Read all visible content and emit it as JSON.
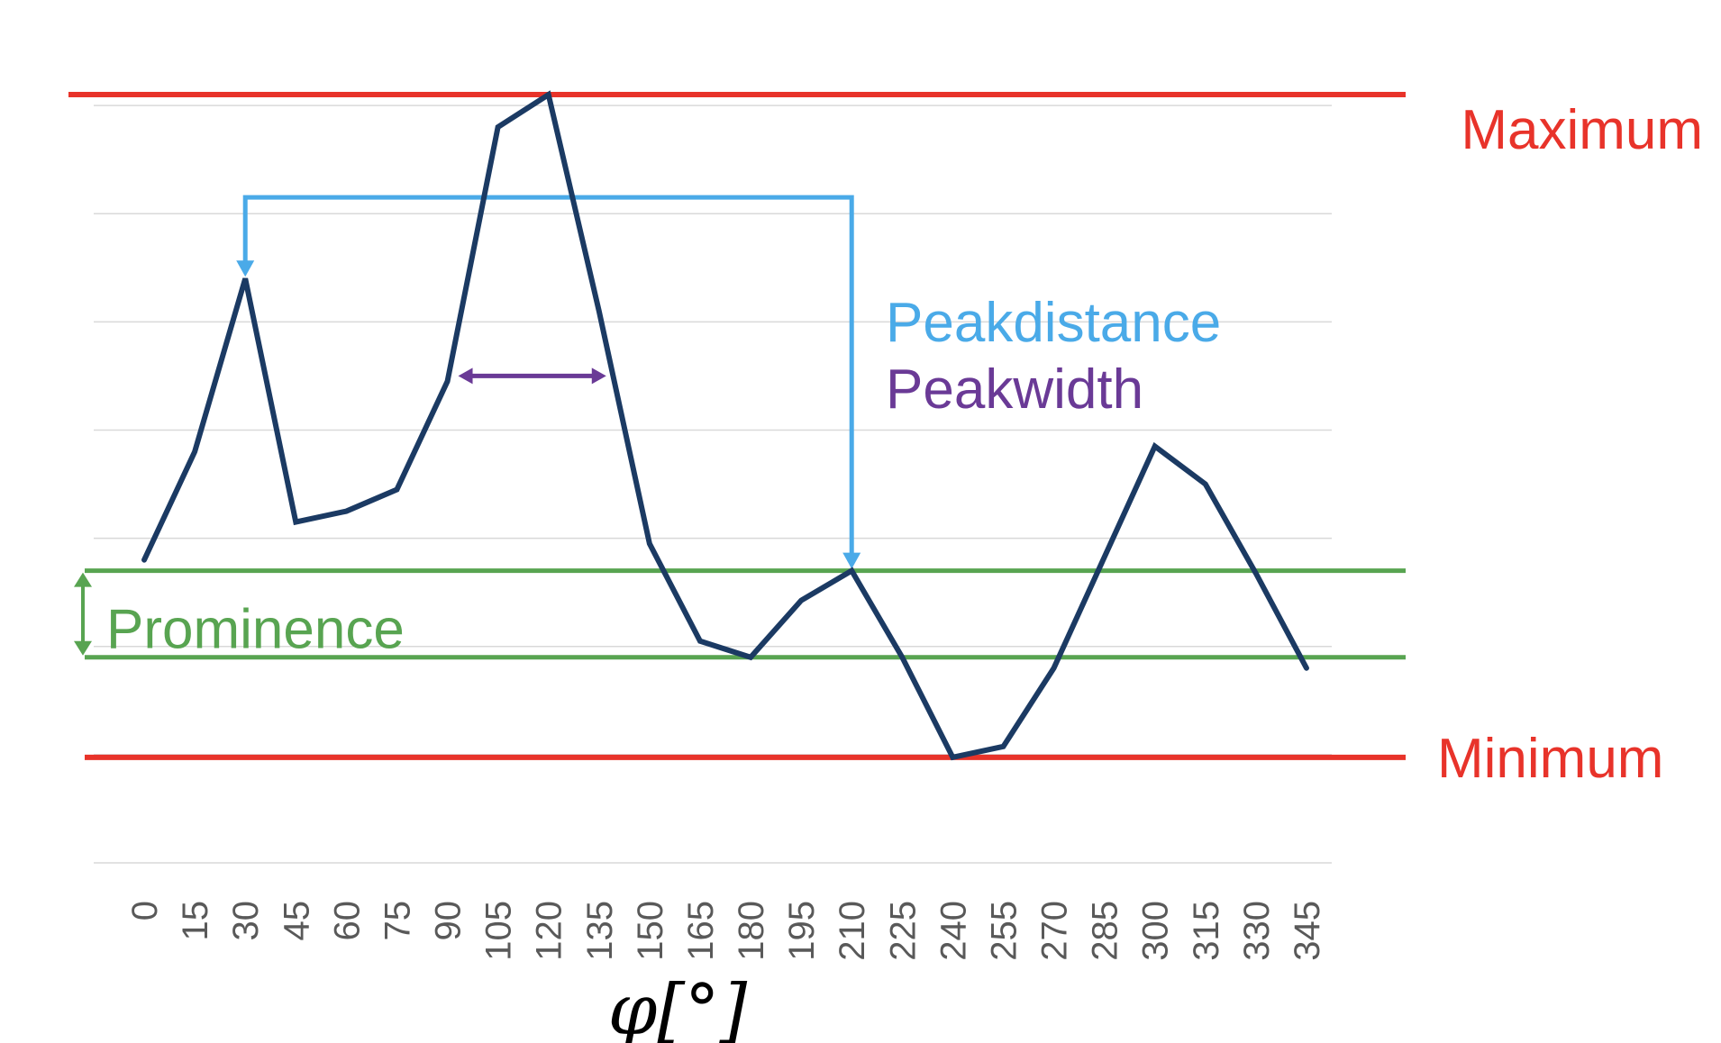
{
  "chart_data": {
    "type": "line",
    "x": [
      0,
      15,
      30,
      45,
      60,
      75,
      90,
      105,
      120,
      135,
      150,
      165,
      180,
      195,
      210,
      225,
      240,
      255,
      270,
      285,
      300,
      315,
      330,
      345
    ],
    "series": [
      {
        "values": [
          5.6,
          7.6,
          10.8,
          6.3,
          6.5,
          6.9,
          8.9,
          13.6,
          14.2,
          10.2,
          5.9,
          4.1,
          3.8,
          4.85,
          5.4,
          3.8,
          1.95,
          2.15,
          3.6,
          5.65,
          7.7,
          7.0,
          5.35,
          3.6
        ]
      }
    ],
    "xlabel": "φ[°]",
    "ylim": [
      0,
      15
    ],
    "ytick_step": 2,
    "grid": true,
    "annotations": {
      "maximum": {
        "label": "Maximum",
        "y": 14.2,
        "color": "#e8332a"
      },
      "minimum": {
        "label": "Minimum",
        "y": 1.95,
        "color": "#e8332a"
      },
      "prominence": {
        "label": "Prominence",
        "y_top": 5.4,
        "y_bottom": 3.8,
        "color": "#58a451"
      },
      "peakdistance": {
        "label": "Peakdistance",
        "from_x": 30,
        "to_x": 210,
        "y": 12.3,
        "color": "#4aaae8"
      },
      "peakwidth": {
        "label": "Peakwidth",
        "from_x": 90,
        "to_x": 135,
        "y": 9,
        "color": "#6a3a96"
      }
    },
    "colors": {
      "line": "#1b3a63",
      "grid": "#d9d9d9",
      "tick_text": "#595959"
    }
  }
}
